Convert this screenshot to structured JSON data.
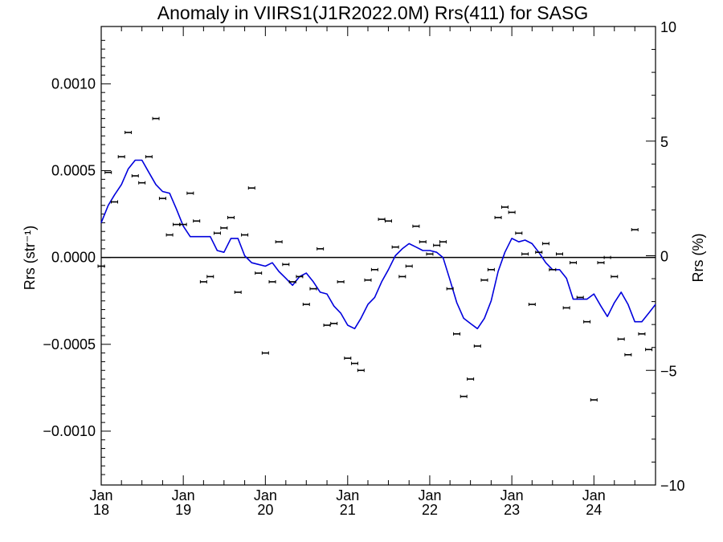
{
  "chart_data": {
    "type": "scatter",
    "title": "Anomaly in VIIRS1(J1R2022.0M) Rrs(411) for SASG",
    "ylabel": "Rrs (str⁻¹)",
    "ylabel_right": "Rrs (%)",
    "xlabel": "",
    "xlim": [
      "2018-01-01",
      "2024-10-01"
    ],
    "ylim": [
      -0.00131,
      0.00133
    ],
    "ylim_right": [
      -10,
      10
    ],
    "x_ticks": [
      {
        "date": "2018-01-01",
        "month": "Jan",
        "year": "18"
      },
      {
        "date": "2019-01-01",
        "month": "Jan",
        "year": "19"
      },
      {
        "date": "2020-01-01",
        "month": "Jan",
        "year": "20"
      },
      {
        "date": "2021-01-01",
        "month": "Jan",
        "year": "21"
      },
      {
        "date": "2022-01-01",
        "month": "Jan",
        "year": "22"
      },
      {
        "date": "2023-01-01",
        "month": "Jan",
        "year": "23"
      },
      {
        "date": "2024-01-01",
        "month": "Jan",
        "year": "24"
      }
    ],
    "y_ticks": [
      {
        "value": 0.001,
        "label": "0.0010"
      },
      {
        "value": 0.0005,
        "label": "0.0005"
      },
      {
        "value": 0.0,
        "label": "0.0000"
      },
      {
        "value": -0.0005,
        "label": "−0.0005"
      },
      {
        "value": -0.001,
        "label": "−0.0010"
      }
    ],
    "y_ticks_right": [
      {
        "value": 10,
        "label": "10"
      },
      {
        "value": 5,
        "label": "5"
      },
      {
        "value": 0,
        "label": "0"
      },
      {
        "value": -5,
        "label": "−5"
      },
      {
        "value": -10,
        "label": "−10"
      }
    ],
    "zero_line": true,
    "series": [
      {
        "kind": "points_with_error_bars",
        "color": "#000000",
        "x": [
          "2018-01-01",
          "2018-02-01",
          "2018-03-01",
          "2018-04-01",
          "2018-05-01",
          "2018-06-01",
          "2018-07-01",
          "2018-08-01",
          "2018-09-01",
          "2018-10-01",
          "2018-11-01",
          "2018-12-01",
          "2019-01-01",
          "2019-02-01",
          "2019-03-01",
          "2019-04-01",
          "2019-05-01",
          "2019-06-01",
          "2019-07-01",
          "2019-08-01",
          "2019-09-01",
          "2019-10-01",
          "2019-11-01",
          "2019-12-01",
          "2020-01-01",
          "2020-02-01",
          "2020-03-01",
          "2020-04-01",
          "2020-05-01",
          "2020-06-01",
          "2020-07-01",
          "2020-08-01",
          "2020-09-01",
          "2020-10-01",
          "2020-11-01",
          "2020-12-01",
          "2021-01-01",
          "2021-02-01",
          "2021-03-01",
          "2021-04-01",
          "2021-05-01",
          "2021-06-01",
          "2021-07-01",
          "2021-08-01",
          "2021-09-01",
          "2021-10-01",
          "2021-11-01",
          "2021-12-01",
          "2022-01-01",
          "2022-02-01",
          "2022-03-01",
          "2022-04-01",
          "2022-05-01",
          "2022-06-01",
          "2022-07-01",
          "2022-08-01",
          "2022-09-01",
          "2022-10-01",
          "2022-11-01",
          "2022-12-01",
          "2023-01-01",
          "2023-02-01",
          "2023-03-01",
          "2023-04-01",
          "2023-05-01",
          "2023-06-01",
          "2023-07-01",
          "2023-08-01",
          "2023-09-01",
          "2023-10-01",
          "2023-11-01",
          "2023-12-01",
          "2024-01-01",
          "2024-02-01",
          "2024-03-01",
          "2024-04-01",
          "2024-05-01",
          "2024-06-01",
          "2024-07-01",
          "2024-08-01",
          "2024-09-01"
        ],
        "y": [
          -5e-05,
          0.00049,
          0.00032,
          0.00058,
          0.00072,
          0.00047,
          0.00043,
          0.00058,
          0.0008,
          0.00034,
          0.00013,
          0.00019,
          0.00019,
          0.00037,
          0.00021,
          -0.00014,
          -0.00011,
          0.00014,
          0.00017,
          0.00023,
          -0.0002,
          0.00013,
          0.0004,
          -9e-05,
          -0.00055,
          -0.00014,
          9e-05,
          -4e-05,
          -0.00014,
          -0.00011,
          -0.00027,
          -0.00018,
          5e-05,
          -0.00039,
          -0.00038,
          -0.00014,
          -0.00058,
          -0.00061,
          -0.00065,
          -0.00013,
          -7e-05,
          0.00022,
          0.00021,
          6e-05,
          -0.00011,
          -5e-05,
          0.00018,
          9e-05,
          2e-05,
          7e-05,
          9e-05,
          -0.00018,
          -0.00044,
          -0.0008,
          -0.0007,
          -0.00051,
          -0.00013,
          -7e-05,
          0.00023,
          0.00029,
          0.00026,
          0.00014,
          2e-05,
          -0.00027,
          3e-05,
          8e-05,
          -7e-05,
          2e-05,
          -0.00029,
          -3e-05,
          -0.00023,
          -0.00037,
          -0.00082,
          -3e-05,
          0,
          -0.00011,
          -0.00047,
          -0.00056,
          0.00016,
          -0.00044,
          -0.00053
        ]
      },
      {
        "kind": "line",
        "color": "#0000dd",
        "x": [
          "2018-01-01",
          "2018-02-01",
          "2018-03-01",
          "2018-04-01",
          "2018-05-01",
          "2018-06-01",
          "2018-07-01",
          "2018-08-01",
          "2018-09-01",
          "2018-10-01",
          "2018-11-01",
          "2018-12-01",
          "2019-01-01",
          "2019-02-01",
          "2019-03-01",
          "2019-04-01",
          "2019-05-01",
          "2019-06-01",
          "2019-07-01",
          "2019-08-01",
          "2019-09-01",
          "2019-10-01",
          "2019-11-01",
          "2019-12-01",
          "2020-01-01",
          "2020-02-01",
          "2020-03-01",
          "2020-04-01",
          "2020-05-01",
          "2020-06-01",
          "2020-07-01",
          "2020-08-01",
          "2020-09-01",
          "2020-10-01",
          "2020-11-01",
          "2020-12-01",
          "2021-01-01",
          "2021-02-01",
          "2021-03-01",
          "2021-04-01",
          "2021-05-01",
          "2021-06-01",
          "2021-07-01",
          "2021-08-01",
          "2021-09-01",
          "2021-10-01",
          "2021-11-01",
          "2021-12-01",
          "2022-01-01",
          "2022-02-01",
          "2022-03-01",
          "2022-04-01",
          "2022-05-01",
          "2022-06-01",
          "2022-07-01",
          "2022-08-01",
          "2022-09-01",
          "2022-10-01",
          "2022-11-01",
          "2022-12-01",
          "2023-01-01",
          "2023-02-01",
          "2023-03-01",
          "2023-04-01",
          "2023-05-01",
          "2023-06-01",
          "2023-07-01",
          "2023-08-01",
          "2023-09-01",
          "2023-10-01",
          "2023-11-01",
          "2023-12-01",
          "2024-01-01",
          "2024-02-01",
          "2024-03-01",
          "2024-04-01",
          "2024-05-01",
          "2024-06-01",
          "2024-07-01",
          "2024-08-01",
          "2024-09-01",
          "2024-10-01"
        ],
        "y": [
          0.0002,
          0.0003,
          0.00036,
          0.00042,
          0.00051,
          0.00056,
          0.00056,
          0.00049,
          0.00042,
          0.00038,
          0.00037,
          0.00028,
          0.00018,
          0.00012,
          0.00012,
          0.00012,
          0.00012,
          4e-05,
          3e-05,
          0.00011,
          0.00011,
          1e-05,
          -3e-05,
          -4e-05,
          -5e-05,
          -3e-05,
          -8e-05,
          -0.00012,
          -0.00016,
          -0.00011,
          -9e-05,
          -0.00014,
          -0.0002,
          -0.00021,
          -0.00028,
          -0.00032,
          -0.00039,
          -0.00041,
          -0.00035,
          -0.00027,
          -0.00023,
          -0.00014,
          -7e-05,
          1e-05,
          5e-05,
          8e-05,
          6e-05,
          4e-05,
          4e-05,
          3e-05,
          0,
          -0.00013,
          -0.00026,
          -0.00035,
          -0.00038,
          -0.00041,
          -0.00035,
          -0.00025,
          -8e-05,
          3e-05,
          0.00011,
          9e-05,
          0.0001,
          8e-05,
          3e-05,
          -3e-05,
          -7e-05,
          -7e-05,
          -0.00012,
          -0.00024,
          -0.00024,
          -0.00024,
          -0.00021,
          -0.00028,
          -0.00034,
          -0.00026,
          -0.0002,
          -0.00027,
          -0.00037,
          -0.00037,
          -0.00032,
          -0.00027
        ]
      }
    ]
  }
}
